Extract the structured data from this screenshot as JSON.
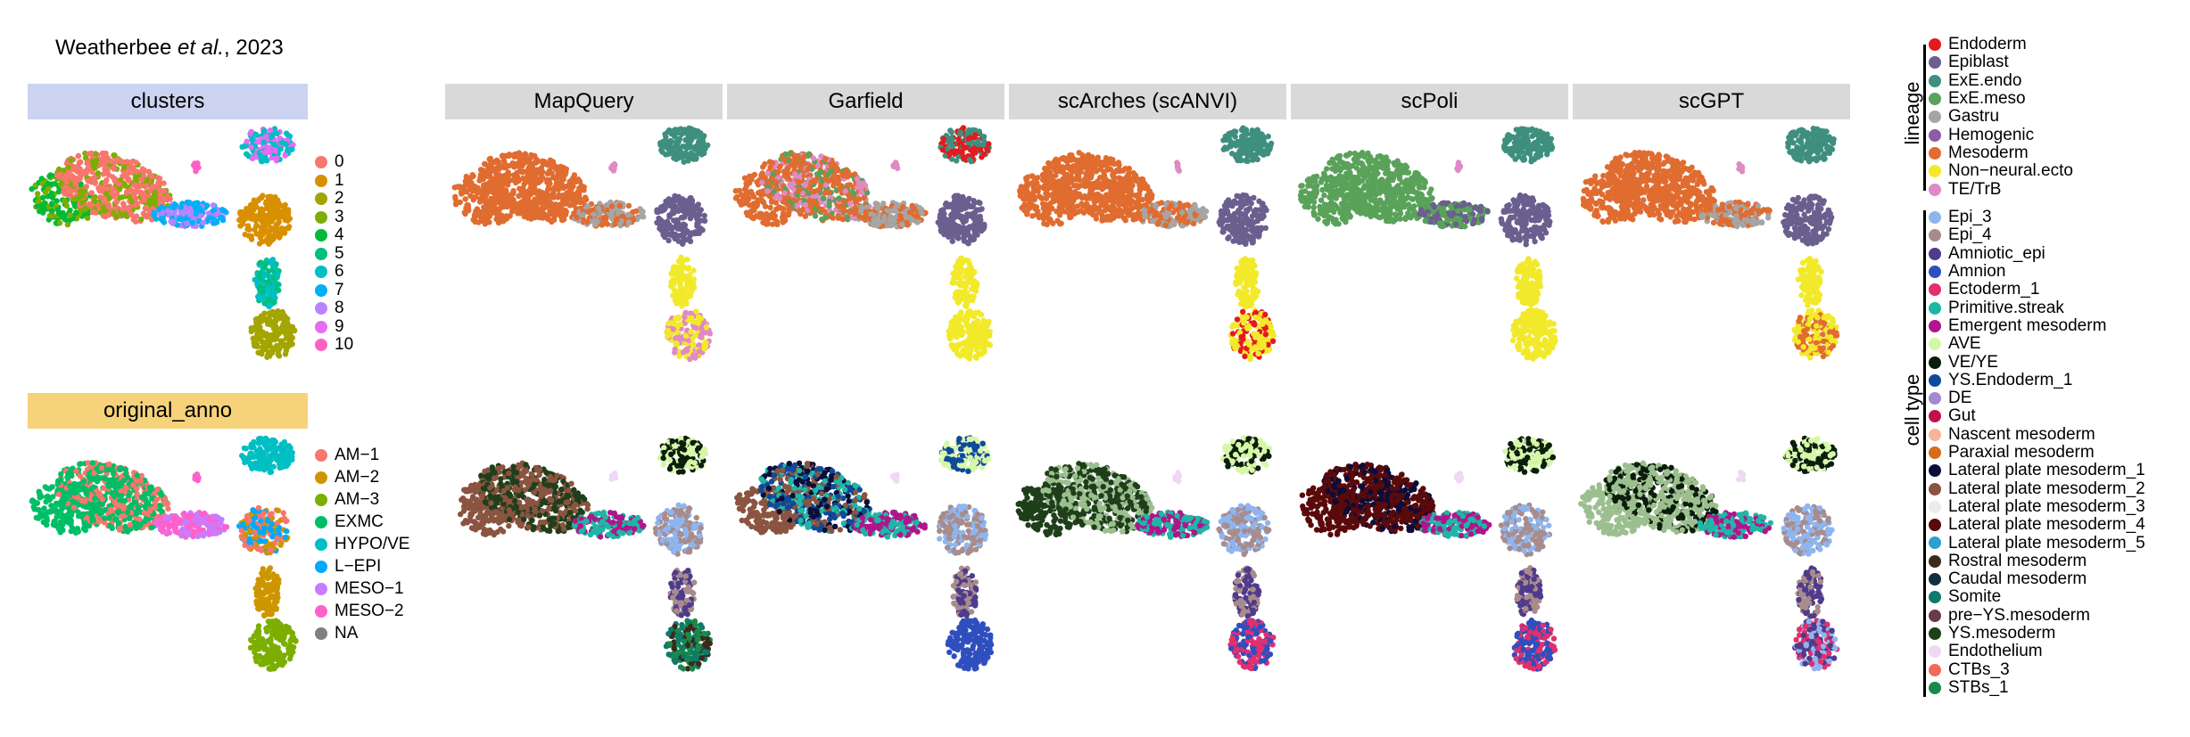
{
  "citation": {
    "author": "Weatherbee",
    "etal": "et al.",
    "year_suffix": ", 2023"
  },
  "strips": {
    "clusters": {
      "label": "clusters",
      "color": "#cbd3f0"
    },
    "original_anno": {
      "label": "original_anno",
      "color": "#f6d27a"
    },
    "methods": [
      "MapQuery",
      "Garfield",
      "scArches (scANVI)",
      "scPoli",
      "scGPT"
    ],
    "method_color": "#d9d9d9"
  },
  "cluster_legend": [
    {
      "label": "0",
      "color": "#f8766d"
    },
    {
      "label": "1",
      "color": "#d89000"
    },
    {
      "label": "2",
      "color": "#a3a500"
    },
    {
      "label": "3",
      "color": "#7cae00"
    },
    {
      "label": "4",
      "color": "#00ba38"
    },
    {
      "label": "5",
      "color": "#00bf7d"
    },
    {
      "label": "6",
      "color": "#00bfc4"
    },
    {
      "label": "7",
      "color": "#00b0f6"
    },
    {
      "label": "8",
      "color": "#b983ff"
    },
    {
      "label": "9",
      "color": "#e76bf3"
    },
    {
      "label": "10",
      "color": "#ff61c3"
    }
  ],
  "anno_legend": [
    {
      "label": "AM−1",
      "color": "#f8766d"
    },
    {
      "label": "AM−2",
      "color": "#cd9600"
    },
    {
      "label": "AM−3",
      "color": "#7cae00"
    },
    {
      "label": "EXMC",
      "color": "#00be67"
    },
    {
      "label": "HYPO/VE",
      "color": "#00bfc4"
    },
    {
      "label": "L−EPI",
      "color": "#00a9ff"
    },
    {
      "label": "MESO−1",
      "color": "#c77cff"
    },
    {
      "label": "MESO−2",
      "color": "#ff61cc"
    },
    {
      "label": "NA",
      "color": "#7f7f7f"
    }
  ],
  "lineage_title": "lineage",
  "celltype_title": "cell type",
  "lineage_legend": [
    {
      "label": "Endoderm",
      "color": "#e41a1c"
    },
    {
      "label": "Epiblast",
      "color": "#6a5f8e"
    },
    {
      "label": "ExE.endo",
      "color": "#3f8f7f"
    },
    {
      "label": "ExE.meso",
      "color": "#5aa25a"
    },
    {
      "label": "Gastru",
      "color": "#a5a5a5"
    },
    {
      "label": "Hemogenic",
      "color": "#8e5ba6"
    },
    {
      "label": "Mesoderm",
      "color": "#e06c30"
    },
    {
      "label": "Non−neural.ecto",
      "color": "#f2e92a"
    },
    {
      "label": "TE/TrB",
      "color": "#e08ac4"
    }
  ],
  "celltype_legend": [
    {
      "label": "Epi_3",
      "color": "#8eb5f0"
    },
    {
      "label": "Epi_4",
      "color": "#a88c8c"
    },
    {
      "label": "Amniotic_epi",
      "color": "#4f3b8c"
    },
    {
      "label": "Amnion",
      "color": "#2f4fbf"
    },
    {
      "label": "Ectoderm_1",
      "color": "#e0306e"
    },
    {
      "label": "Primitive.streak",
      "color": "#1fb6a6"
    },
    {
      "label": "Emergent mesoderm",
      "color": "#b0158c"
    },
    {
      "label": "AVE",
      "color": "#d6f7a8"
    },
    {
      "label": "VE/YE",
      "color": "#0b1d0b"
    },
    {
      "label": "YS.Endoderm_1",
      "color": "#0f4a9a"
    },
    {
      "label": "DE",
      "color": "#a08ad0"
    },
    {
      "label": "Gut",
      "color": "#c0124a"
    },
    {
      "label": "Nascent mesoderm",
      "color": "#f6b59a"
    },
    {
      "label": "Paraxial mesoderm",
      "color": "#d96a1a"
    },
    {
      "label": "Lateral plate mesoderm_1",
      "color": "#0c0c3a"
    },
    {
      "label": "Lateral plate mesoderm_2",
      "color": "#8a5440"
    },
    {
      "label": "Lateral plate mesoderm_3",
      "color": "#f0eaea"
    },
    {
      "label": "Lateral plate mesoderm_4",
      "color": "#5a0a0a"
    },
    {
      "label": "Lateral plate mesoderm_5",
      "color": "#2aa0d0"
    },
    {
      "label": "Rostral mesoderm",
      "color": "#3a2a1a"
    },
    {
      "label": "Caudal mesoderm",
      "color": "#0f2f3f"
    },
    {
      "label": "Somite",
      "color": "#0e7a6a"
    },
    {
      "label": "pre−YS.mesoderm",
      "color": "#6a3a4a"
    },
    {
      "label": "YS.mesoderm",
      "color": "#1f3f1a"
    },
    {
      "label": "Endothelium",
      "color": "#f0d8f5"
    },
    {
      "label": "CTBs_3",
      "color": "#f26a5a"
    },
    {
      "label": "STBs_1",
      "color": "#1a8a4a"
    }
  ],
  "chart_data": [
    {
      "type": "scatter",
      "panel": "clusters",
      "coloring": "cluster",
      "legend": [
        "0",
        "1",
        "2",
        "3",
        "4",
        "5",
        "6",
        "7",
        "8",
        "9",
        "10"
      ]
    },
    {
      "type": "scatter",
      "panel": "original_anno",
      "coloring": "original annotation",
      "legend": [
        "AM−1",
        "AM−2",
        "AM−3",
        "EXMC",
        "HYPO/VE",
        "L−EPI",
        "MESO−1",
        "MESO−2",
        "NA"
      ]
    },
    {
      "type": "scatter",
      "panel": "MapQuery",
      "row": "lineage"
    },
    {
      "type": "scatter",
      "panel": "Garfield",
      "row": "lineage"
    },
    {
      "type": "scatter",
      "panel": "scArches (scANVI)",
      "row": "lineage"
    },
    {
      "type": "scatter",
      "panel": "scPoli",
      "row": "lineage"
    },
    {
      "type": "scatter",
      "panel": "scGPT",
      "row": "lineage"
    },
    {
      "type": "scatter",
      "panel": "MapQuery",
      "row": "cell type"
    },
    {
      "type": "scatter",
      "panel": "Garfield",
      "row": "cell type"
    },
    {
      "type": "scatter",
      "panel": "scArches (scANVI)",
      "row": "cell type"
    },
    {
      "type": "scatter",
      "panel": "scPoli",
      "row": "cell type"
    },
    {
      "type": "scatter",
      "panel": "scGPT",
      "row": "cell type"
    }
  ]
}
